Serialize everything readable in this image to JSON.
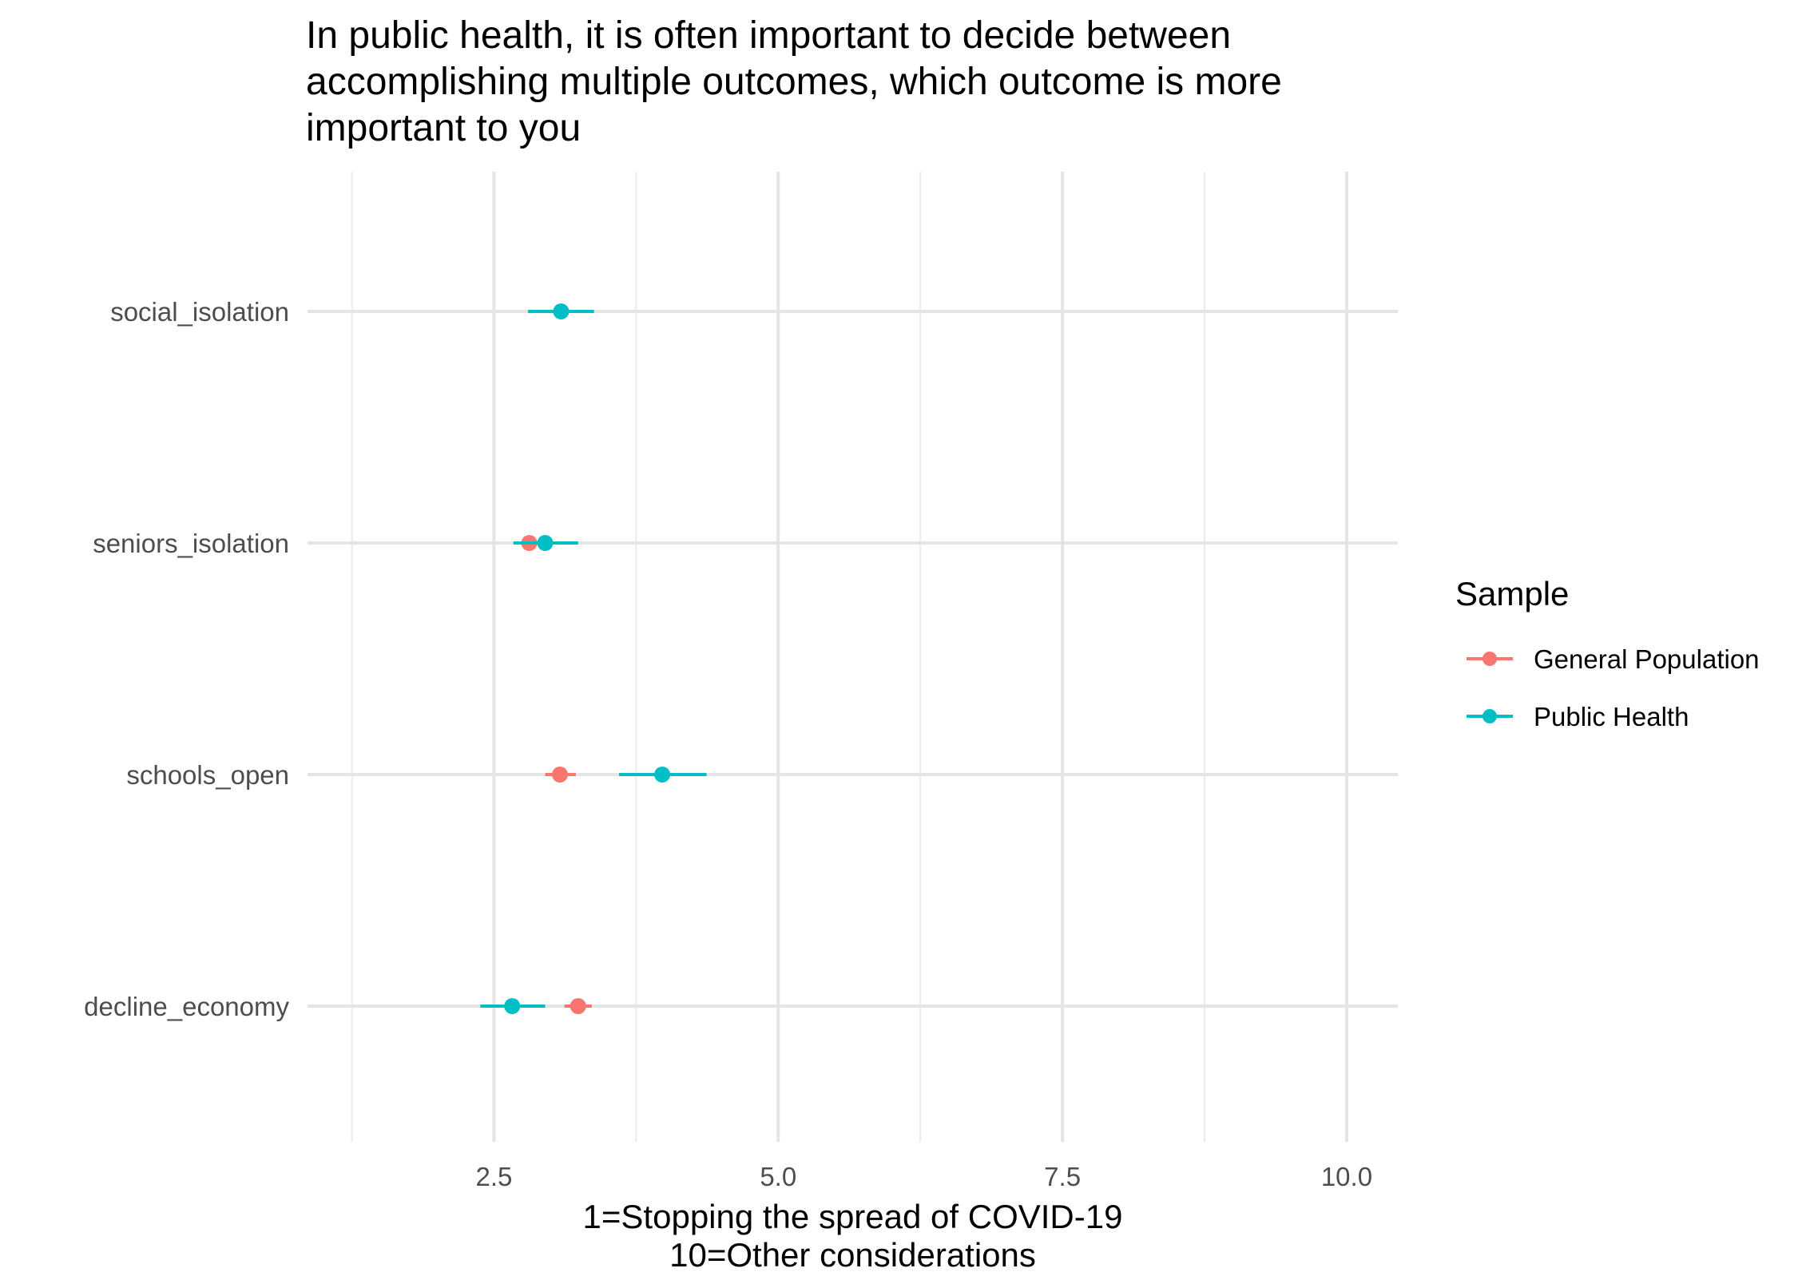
{
  "chart_data": {
    "type": "scatter",
    "subtype": "dot-with-error-bars",
    "title_lines": [
      "In public health, it is often important to decide between",
      "accomplishing multiple outcomes, which outcome is more",
      "important to you"
    ],
    "xlabel_lines": [
      "1=Stopping the spread of COVID-19",
      "10=Other considerations"
    ],
    "ylabel": "",
    "categories": [
      "social_isolation",
      "seniors_isolation",
      "schools_open",
      "decline_economy"
    ],
    "x_ticks": [
      "2.5",
      "5.0",
      "7.5",
      "10.0"
    ],
    "x_tick_values": [
      2.5,
      5.0,
      7.5,
      10.0
    ],
    "xlim": [
      0.86,
      10.45
    ],
    "grid": true,
    "legend": {
      "title": "Sample",
      "position": "right",
      "entries": [
        "General Population",
        "Public Health"
      ]
    },
    "series": [
      {
        "name": "General Population",
        "color": "#F8766D",
        "points": [
          {
            "category": "seniors_isolation",
            "x": 2.81,
            "lo": 2.72,
            "hi": 2.9
          },
          {
            "category": "schools_open",
            "x": 3.08,
            "lo": 2.95,
            "hi": 3.22
          },
          {
            "category": "decline_economy",
            "x": 3.24,
            "lo": 3.12,
            "hi": 3.36
          }
        ]
      },
      {
        "name": "Public Health",
        "color": "#00BFC4",
        "points": [
          {
            "category": "social_isolation",
            "x": 3.09,
            "lo": 2.8,
            "hi": 3.38
          },
          {
            "category": "seniors_isolation",
            "x": 2.95,
            "lo": 2.67,
            "hi": 3.24
          },
          {
            "category": "schools_open",
            "x": 3.98,
            "lo": 3.6,
            "hi": 4.37
          },
          {
            "category": "decline_economy",
            "x": 2.66,
            "lo": 2.38,
            "hi": 2.95
          }
        ]
      }
    ]
  }
}
